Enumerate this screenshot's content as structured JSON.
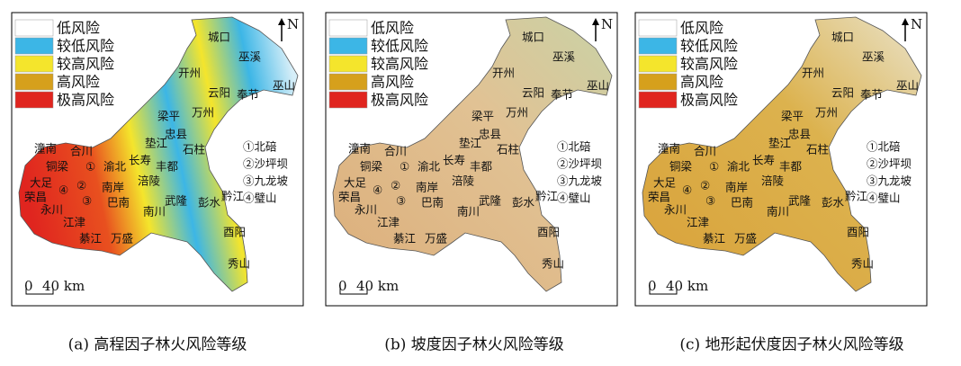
{
  "legend": [
    {
      "label": "低风险",
      "color": "#ffffff"
    },
    {
      "label": "较低风险",
      "color": "#3cb6e6"
    },
    {
      "label": "较高风险",
      "color": "#f4e52c"
    },
    {
      "label": "高风险",
      "color": "#d6a01c"
    },
    {
      "label": "极高风险",
      "color": "#e0251f"
    }
  ],
  "north": "N",
  "places": [
    "城口",
    "巫溪",
    "开州",
    "巫山",
    "云阳",
    "奉节",
    "梁平",
    "万州",
    "忠县",
    "垫江",
    "石柱",
    "潼南",
    "合川",
    "长寿",
    "丰都",
    "铜梁",
    "①",
    "渝北",
    "大足",
    "②",
    "南岸",
    "涪陵",
    "荣昌",
    "④",
    "③",
    "巴南",
    "永川",
    "武隆",
    "彭水",
    "黔江",
    "南川",
    "江津",
    "綦江",
    "万盛",
    "酉阳",
    "秀山"
  ],
  "notes": [
    "①北碚",
    "②沙坪坝",
    "③九龙坡",
    "④璧山"
  ],
  "scale": {
    "start": "0",
    "end": "40 km"
  },
  "panels": [
    {
      "caption": "(a) 高程因子林火风险等级"
    },
    {
      "caption": "(b) 坡度因子林火风险等级"
    },
    {
      "caption": "(c) 地形起伏度因子林火风险等级"
    }
  ]
}
